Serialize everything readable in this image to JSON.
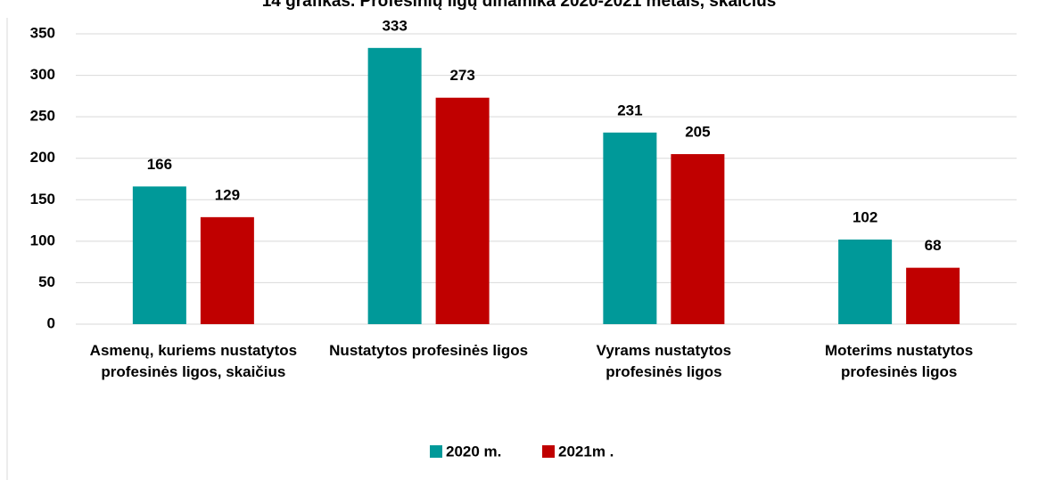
{
  "chart_data": {
    "type": "bar",
    "title": "14 grafikas. Profesinių ligų dinamika 2020-2021 metais, skaičius",
    "categories": [
      "Asmenų, kuriems nustatytos profesinės ligos, skaičius",
      "Nustatytos profesinės ligos",
      "Vyrams nustatytos profesinės ligos",
      "Moterims nustatytos profesinės ligos"
    ],
    "series": [
      {
        "name": "2020 m.",
        "color": "#009999",
        "values": [
          166,
          333,
          231,
          102
        ]
      },
      {
        "name": "2021m .",
        "color": "#c00000",
        "values": [
          129,
          273,
          205,
          68
        ]
      }
    ],
    "ylim": [
      0,
      350
    ],
    "yticks": [
      0,
      50,
      100,
      150,
      200,
      250,
      300,
      350
    ],
    "grid": true,
    "legend": "bottom"
  }
}
